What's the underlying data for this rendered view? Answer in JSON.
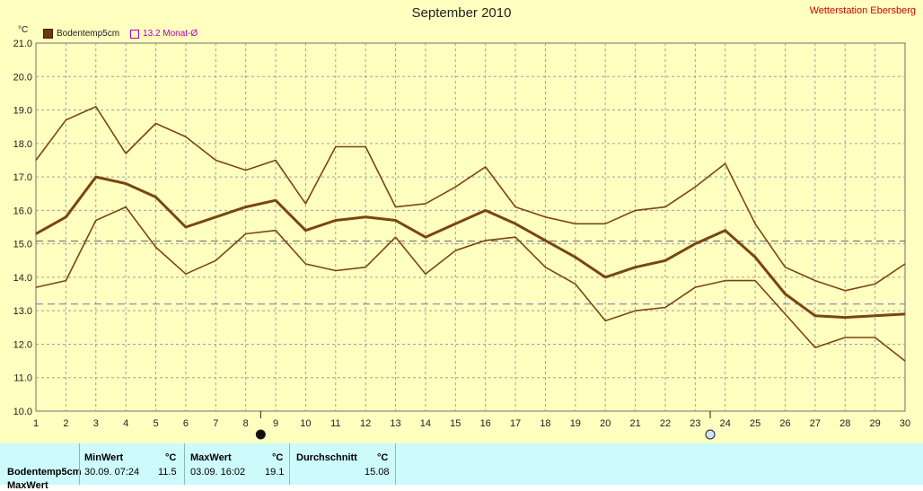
{
  "header": {
    "title": "September 2010",
    "station": "Wetterstation Ebersberg",
    "unit": "°C",
    "legend_series": "Bodentemp5cm",
    "legend_avg": "13.2 Monat-Ø"
  },
  "colors": {
    "background": "#ffffc0",
    "series": "#7a4510",
    "grid": "#a0a0a0",
    "avg_line": "#9060c0",
    "ref_line": "#606060",
    "stats_bg": "#cdfafa",
    "station_text": "#d00000"
  },
  "chart_data": {
    "type": "line",
    "title": "September 2010",
    "ylabel": "°C",
    "x": [
      1,
      2,
      3,
      4,
      5,
      6,
      7,
      8,
      9,
      10,
      11,
      12,
      13,
      14,
      15,
      16,
      17,
      18,
      19,
      20,
      21,
      22,
      23,
      24,
      25,
      26,
      27,
      28,
      29,
      30
    ],
    "ylim": [
      10.0,
      21.0
    ],
    "yticks": [
      "10.0",
      "11.0",
      "12.0",
      "13.0",
      "14.0",
      "15.0",
      "16.0",
      "17.0",
      "18.0",
      "19.0",
      "20.0",
      "21.0"
    ],
    "grid": true,
    "legend_position": "top-left",
    "series": [
      {
        "name": "Bodentemp5cm",
        "role": "max",
        "values": [
          17.5,
          18.7,
          19.1,
          17.7,
          18.6,
          18.2,
          17.5,
          17.2,
          17.5,
          16.2,
          17.9,
          17.9,
          16.1,
          16.2,
          16.7,
          17.3,
          16.1,
          15.8,
          15.6,
          15.6,
          16.0,
          16.1,
          16.7,
          17.4,
          15.6,
          14.3,
          13.9,
          13.6,
          13.8,
          14.4
        ]
      },
      {
        "name": "Bodentemp5cm",
        "role": "mean",
        "values": [
          15.3,
          15.8,
          17.0,
          16.8,
          16.4,
          15.5,
          15.8,
          16.1,
          16.3,
          15.4,
          15.7,
          15.8,
          15.7,
          15.2,
          15.6,
          16.0,
          15.6,
          15.1,
          14.6,
          14.0,
          14.3,
          14.5,
          15.0,
          15.4,
          14.6,
          13.5,
          12.85,
          12.8,
          12.85,
          12.9
        ]
      },
      {
        "name": "Bodentemp5cm",
        "role": "min",
        "values": [
          13.7,
          13.9,
          15.7,
          16.1,
          14.9,
          14.1,
          14.5,
          15.3,
          15.4,
          14.4,
          14.2,
          14.3,
          15.2,
          14.1,
          14.8,
          15.1,
          15.2,
          14.3,
          13.8,
          12.7,
          13.0,
          13.1,
          13.7,
          13.9,
          13.9,
          12.9,
          11.9,
          12.2,
          12.2,
          11.5
        ]
      }
    ],
    "reference_lines": [
      {
        "label": "13.2 Monat-Ø",
        "value": 13.2
      },
      {
        "label": "Durchschnitt",
        "value": 15.08
      }
    ],
    "moon_phases": [
      {
        "day": 8.5,
        "phase": "new"
      },
      {
        "day": 23.5,
        "phase": "full"
      }
    ]
  },
  "stats": {
    "row_label": "Bodentemp5cm",
    "row_label2": "MaxWert",
    "min_header": "MinWert",
    "max_header": "MaxWert",
    "avg_header": "Durchschnitt",
    "unit": "°C",
    "min_time": "30.09. 07:24",
    "min_value": "11.5",
    "max_time": "03.09. 16:02",
    "max_value": "19.1",
    "avg_value": "15.08"
  }
}
